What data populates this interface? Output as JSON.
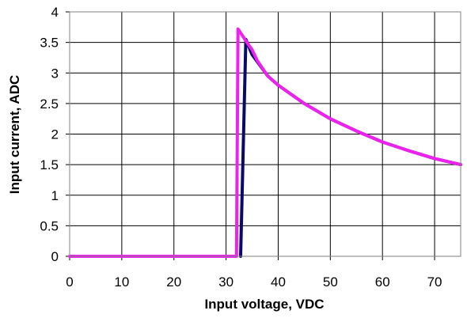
{
  "chart_data": {
    "type": "line",
    "xlabel": "Input voltage, VDC",
    "ylabel": "Input current, ADC",
    "xlim": [
      0,
      75
    ],
    "ylim": [
      0,
      4
    ],
    "xticks": [
      "0",
      "10",
      "20",
      "30",
      "40",
      "50",
      "60",
      "70"
    ],
    "yticks": [
      "0",
      "0.5",
      "1",
      "1.5",
      "2",
      "2.5",
      "3",
      "3.5",
      "4"
    ],
    "grid": true,
    "legend": "none",
    "series": [
      {
        "color": "#0a0a6a",
        "points": [
          [
            32.8,
            0
          ],
          [
            33.8,
            3.55
          ],
          [
            35,
            3.3
          ],
          [
            38,
            2.95
          ],
          [
            40,
            2.8
          ],
          [
            45,
            2.5
          ],
          [
            50,
            2.25
          ],
          [
            55,
            2.05
          ],
          [
            60,
            1.87
          ],
          [
            65,
            1.73
          ],
          [
            70,
            1.6
          ],
          [
            75,
            1.5
          ]
        ]
      },
      {
        "color": "#ee22ee",
        "points": [
          [
            0,
            0
          ],
          [
            32,
            0
          ],
          [
            32.3,
            3.72
          ],
          [
            33,
            3.63
          ],
          [
            34,
            3.5
          ],
          [
            35,
            3.38
          ],
          [
            36,
            3.2
          ],
          [
            38,
            2.95
          ],
          [
            40,
            2.8
          ],
          [
            45,
            2.5
          ],
          [
            50,
            2.25
          ],
          [
            55,
            2.05
          ],
          [
            60,
            1.87
          ],
          [
            65,
            1.73
          ],
          [
            70,
            1.6
          ],
          [
            75,
            1.5
          ]
        ]
      }
    ]
  }
}
